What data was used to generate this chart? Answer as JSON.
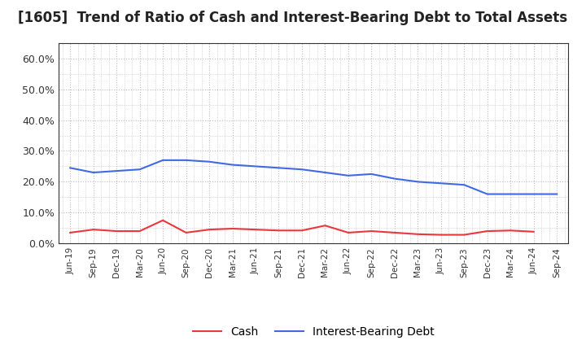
{
  "title": "[1605]  Trend of Ratio of Cash and Interest-Bearing Debt to Total Assets",
  "x_labels": [
    "Jun-19",
    "Sep-19",
    "Dec-19",
    "Mar-20",
    "Jun-20",
    "Sep-20",
    "Dec-20",
    "Mar-21",
    "Jun-21",
    "Sep-21",
    "Dec-21",
    "Mar-22",
    "Jun-22",
    "Sep-22",
    "Dec-22",
    "Mar-23",
    "Jun-23",
    "Sep-23",
    "Dec-23",
    "Mar-24",
    "Jun-24",
    "Sep-24"
  ],
  "cash": [
    3.5,
    4.5,
    4.0,
    4.0,
    7.5,
    3.5,
    4.5,
    4.8,
    4.5,
    4.2,
    4.2,
    5.8,
    3.5,
    4.0,
    3.5,
    3.0,
    2.8,
    2.8,
    4.0,
    4.2,
    3.8,
    null
  ],
  "ibd": [
    24.5,
    23.0,
    23.5,
    24.0,
    27.0,
    27.0,
    26.5,
    25.5,
    25.0,
    24.5,
    24.0,
    23.0,
    22.0,
    22.5,
    21.0,
    20.0,
    19.5,
    19.0,
    16.0,
    16.0,
    16.0,
    16.0
  ],
  "cash_color": "#e8383d",
  "ibd_color": "#4169e1",
  "background_color": "#ffffff",
  "plot_bg_color": "#ffffff",
  "grid_color": "#bbbbbb",
  "ylim": [
    0,
    65
  ],
  "yticks": [
    0,
    10,
    20,
    30,
    40,
    50,
    60
  ],
  "ytick_labels": [
    "0.0%",
    "10.0%",
    "20.0%",
    "30.0%",
    "40.0%",
    "50.0%",
    "60.0%"
  ],
  "title_fontsize": 12,
  "legend_labels": [
    "Cash",
    "Interest-Bearing Debt"
  ]
}
